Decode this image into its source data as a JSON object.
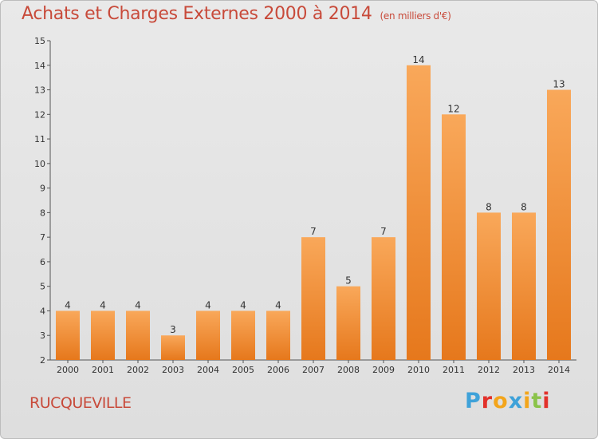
{
  "title": "Achats et Charges Externes 2000 à 2014",
  "subtitle": "(en milliers d'€)",
  "commune": "RUCQUEVILLE",
  "logo": {
    "letters": [
      "P",
      "r",
      "o",
      "x",
      "i",
      "t",
      "i"
    ],
    "colors": [
      "#3fa2d9",
      "#e2312b",
      "#f3a51b",
      "#3fa2d9",
      "#f3a51b",
      "#8bc34a",
      "#e2312b"
    ]
  },
  "colors": {
    "bar_light": "#f9a85a",
    "bar_dark": "#e6781c",
    "title": "#c84a3a"
  },
  "chart_data": {
    "type": "bar",
    "categories": [
      "2000",
      "2001",
      "2002",
      "2003",
      "2004",
      "2005",
      "2006",
      "2007",
      "2008",
      "2009",
      "2010",
      "2011",
      "2012",
      "2013",
      "2014"
    ],
    "values": [
      4,
      4,
      4,
      3,
      4,
      4,
      4,
      7,
      5,
      7,
      14,
      12,
      8,
      8,
      13
    ],
    "ylim": [
      2,
      15
    ],
    "yticks": [
      2,
      3,
      4,
      5,
      6,
      7,
      8,
      9,
      10,
      11,
      12,
      13,
      14,
      15
    ],
    "grid": false,
    "legend": "none"
  }
}
